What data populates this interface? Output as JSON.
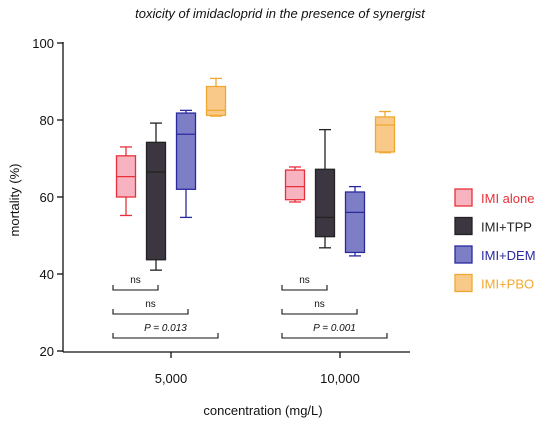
{
  "chart_data": {
    "type": "box",
    "title": "toxicity of imidacloprid in the presence of synergist",
    "xlabel": "concentration (mg/L)",
    "ylabel": "mortality (%)",
    "ylim": [
      20,
      100
    ],
    "yticks": [
      20,
      40,
      60,
      80,
      100
    ],
    "categories": [
      "5,000",
      "10,000"
    ],
    "series": [
      {
        "name": "IMI alone",
        "color": "#e8303a",
        "fill": "#f7b4c0",
        "boxes": [
          {
            "min": 55.2,
            "q1": 60.0,
            "median": 65.3,
            "q3": 70.7,
            "max": 73.0
          },
          {
            "min": 58.7,
            "q1": 59.3,
            "median": 62.7,
            "q3": 67.0,
            "max": 67.8
          }
        ]
      },
      {
        "name": "IMI+TPP",
        "color": "#222222",
        "fill": "#3c3640",
        "boxes": [
          {
            "min": 41.0,
            "q1": 43.7,
            "median": 66.5,
            "q3": 74.2,
            "max": 79.2
          },
          {
            "min": 46.8,
            "q1": 49.7,
            "median": 54.7,
            "q3": 67.2,
            "max": 77.5
          }
        ]
      },
      {
        "name": "IMI+DEM",
        "color": "#2a2aa0",
        "fill": "#7e7ec6",
        "boxes": [
          {
            "min": 54.7,
            "q1": 62.0,
            "median": 76.3,
            "q3": 81.8,
            "max": 82.5
          },
          {
            "min": 44.7,
            "q1": 45.6,
            "median": 56.0,
            "q3": 61.3,
            "max": 62.7
          }
        ]
      },
      {
        "name": "IMI+PBO",
        "color": "#f0a830",
        "fill": "#f9c98a",
        "boxes": [
          {
            "min": 81.0,
            "q1": 81.2,
            "median": 82.5,
            "q3": 88.7,
            "max": 90.8
          },
          {
            "min": 71.5,
            "q1": 71.7,
            "median": 78.7,
            "q3": 80.8,
            "max": 82.2
          }
        ]
      }
    ],
    "annotations": [
      {
        "group": 0,
        "from": 0,
        "to": 1,
        "label": "ns",
        "level": 1
      },
      {
        "group": 0,
        "from": 0,
        "to": 2,
        "label": "ns",
        "level": 2
      },
      {
        "group": 0,
        "from": 0,
        "to": 3,
        "label": "P = 0.013",
        "level": 3
      },
      {
        "group": 1,
        "from": 0,
        "to": 1,
        "label": "ns",
        "level": 1
      },
      {
        "group": 1,
        "from": 0,
        "to": 2,
        "label": "ns",
        "level": 2
      },
      {
        "group": 1,
        "from": 0,
        "to": 3,
        "label": "P = 0.001",
        "level": 3
      }
    ],
    "legend_position": "right"
  }
}
